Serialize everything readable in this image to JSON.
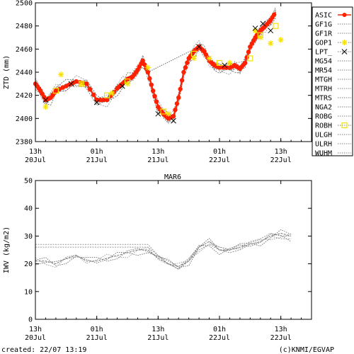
{
  "footer": {
    "created": "created: 22/07 13:19",
    "credit": "(c)KNMI/EGVAP"
  },
  "chart_data": [
    {
      "type": "line",
      "ylabel": "ZTD (mm)",
      "ylim": [
        2380,
        2500
      ],
      "yticks": [
        2380,
        2400,
        2420,
        2440,
        2460,
        2480,
        2500
      ],
      "xlim": [
        0,
        54
      ],
      "xticks": [
        {
          "x": 0,
          "top": "13h",
          "bottom": "20Jul"
        },
        {
          "x": 12,
          "top": "01h",
          "bottom": "21Jul"
        },
        {
          "x": 24,
          "top": "13h",
          "bottom": "21Jul"
        },
        {
          "x": 36,
          "top": "01h",
          "bottom": "22Jul"
        },
        {
          "x": 48,
          "top": "13h",
          "bottom": "22Jul"
        }
      ],
      "grid": false,
      "legend_position": "right",
      "legend": [
        {
          "name": "ASIC",
          "color": "#ff2000",
          "style": "line-dot"
        },
        {
          "name": "GF1G",
          "color": "#808080",
          "style": "dotted"
        },
        {
          "name": "GF1R",
          "color": "#808080",
          "style": "dotted"
        },
        {
          "name": "GOP1",
          "color": "#f5e000",
          "style": "star"
        },
        {
          "name": "LPT_",
          "color": "#000000",
          "style": "cross"
        },
        {
          "name": "MG54",
          "color": "#808080",
          "style": "dotted"
        },
        {
          "name": "MR54",
          "color": "#808080",
          "style": "dotted"
        },
        {
          "name": "MTGH",
          "color": "#808080",
          "style": "dotted"
        },
        {
          "name": "MTRH",
          "color": "#808080",
          "style": "dotted"
        },
        {
          "name": "MTRS",
          "color": "#808080",
          "style": "dotted"
        },
        {
          "name": "NGA2",
          "color": "#808080",
          "style": "dotted"
        },
        {
          "name": "ROBG",
          "color": "#808080",
          "style": "dotted"
        },
        {
          "name": "ROBH",
          "color": "#f5e000",
          "style": "square"
        },
        {
          "name": "ULGH",
          "color": "#808080",
          "style": "dotted"
        },
        {
          "name": "ULRH",
          "color": "#808080",
          "style": "dotted"
        },
        {
          "name": "WUHM",
          "color": "#808080",
          "style": "dotted"
        }
      ],
      "series": [
        {
          "name": "ASIC",
          "x": [
            0,
            1,
            2,
            3,
            4,
            6,
            8,
            10,
            12,
            14,
            16,
            17,
            18,
            19,
            20,
            21,
            22,
            23,
            24,
            25,
            26,
            27,
            28,
            29,
            30,
            31,
            32,
            33,
            34,
            35,
            36,
            38,
            39,
            40,
            41,
            42,
            43,
            44,
            45,
            46,
            47
          ],
          "y": [
            2430,
            2424,
            2416,
            2418,
            2424,
            2428,
            2432,
            2430,
            2416,
            2416,
            2426,
            2430,
            2434,
            2436,
            2442,
            2450,
            2440,
            2424,
            2410,
            2404,
            2400,
            2402,
            2418,
            2440,
            2452,
            2458,
            2462,
            2458,
            2450,
            2446,
            2444,
            2444,
            2446,
            2443,
            2448,
            2462,
            2470,
            2476,
            2480,
            2485,
            2492
          ]
        },
        {
          "name": "GOP1",
          "x": [
            2,
            5,
            9,
            15,
            18,
            22,
            26,
            31,
            34,
            38,
            43,
            44,
            46,
            48
          ],
          "y": [
            2410,
            2438,
            2430,
            2422,
            2430,
            2444,
            2404,
            2452,
            2452,
            2448,
            2476,
            2470,
            2465,
            2468
          ]
        },
        {
          "name": "LPT_",
          "x": [
            2,
            7,
            12,
            17,
            24,
            27,
            32,
            37,
            43,
            44.5,
            46
          ],
          "y": [
            2416,
            2430,
            2414,
            2428,
            2404,
            2398,
            2462,
            2446,
            2478,
            2482,
            2476
          ]
        },
        {
          "name": "ROBH",
          "x": [
            4,
            9,
            14,
            18,
            25,
            31,
            36,
            42,
            44,
            47
          ],
          "y": [
            2424,
            2430,
            2420,
            2432,
            2406,
            2456,
            2448,
            2452,
            2472,
            2480
          ]
        }
      ]
    },
    {
      "type": "line",
      "title": "MAR6",
      "ylabel": "IWV (kg/m2)",
      "ylim": [
        0,
        50
      ],
      "yticks": [
        0,
        10,
        20,
        30,
        40,
        50
      ],
      "xlim": [
        0,
        54
      ],
      "xticks": [
        {
          "x": 0,
          "top": "13h",
          "bottom": "20Jul"
        },
        {
          "x": 12,
          "top": "01h",
          "bottom": "21Jul"
        },
        {
          "x": 24,
          "top": "13h",
          "bottom": "21Jul"
        },
        {
          "x": 36,
          "top": "01h",
          "bottom": "22Jul"
        },
        {
          "x": 48,
          "top": "13h",
          "bottom": "22Jul"
        }
      ],
      "grid": false,
      "series": [
        {
          "x": [
            0,
            2,
            4,
            6,
            8,
            10,
            12,
            14,
            16,
            18,
            20,
            22,
            24,
            26,
            28,
            30,
            32,
            34,
            36,
            38,
            40,
            42,
            44,
            46,
            48,
            50
          ],
          "y": [
            21,
            21,
            20,
            22,
            23,
            21,
            21,
            22,
            23,
            24,
            25,
            25,
            22,
            20,
            19,
            21,
            26,
            28,
            25,
            25,
            26,
            27,
            28,
            30,
            31,
            30
          ]
        },
        {
          "x": [
            0,
            4,
            8,
            12,
            16,
            20,
            22,
            24,
            26,
            28,
            30,
            32,
            34,
            36,
            38,
            40,
            42,
            44,
            46,
            48,
            50
          ],
          "y": [
            27,
            27,
            27,
            27,
            27,
            27,
            27,
            23,
            21,
            19,
            22,
            26,
            28,
            26,
            25,
            26,
            28,
            29,
            31,
            30,
            30
          ]
        },
        {
          "x": [
            0,
            4,
            8,
            12,
            16,
            20,
            22,
            24,
            26,
            28,
            30,
            32,
            34,
            36,
            38,
            40,
            42,
            44,
            46,
            48,
            50
          ],
          "y": [
            26,
            26,
            26,
            26,
            26,
            26,
            26,
            23,
            20,
            18,
            21,
            25,
            27,
            25,
            24,
            25,
            27,
            28,
            30,
            29,
            29
          ]
        }
      ]
    }
  ]
}
